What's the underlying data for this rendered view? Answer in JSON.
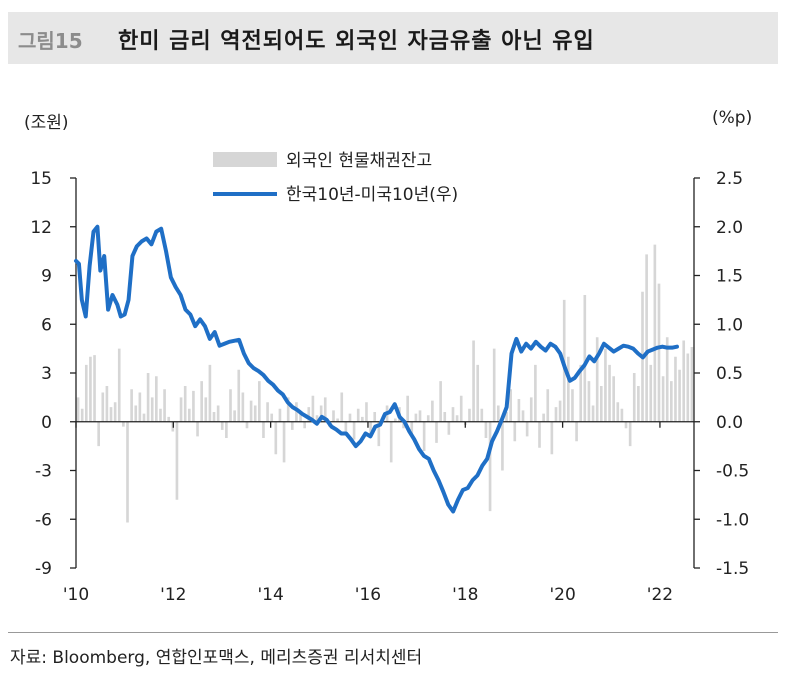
{
  "figure": {
    "label": "그림15",
    "title": "한미 금리 역전되어도 외국인 자금유출 아닌 유입"
  },
  "source": "자료: Bloomberg, 연합인포맥스, 메리츠증권 리서치센터",
  "chart_data": {
    "type": "bar+line",
    "left_unit": "(조원)",
    "right_unit": "(%p)",
    "y_left": {
      "min": -9,
      "max": 15,
      "ticks": [
        "15",
        "12",
        "9",
        "6",
        "3",
        "0",
        "-3",
        "-6",
        "-9"
      ]
    },
    "y_right": {
      "min": -1.5,
      "max": 2.5,
      "ticks": [
        "2.5",
        "2.0",
        "1.5",
        "1.0",
        "0.5",
        "0.0",
        "-0.5",
        "-1.0",
        "-1.5"
      ]
    },
    "x_labels": [
      "'10",
      "'12",
      "'14",
      "'16",
      "'18",
      "'20",
      "'22"
    ],
    "x_start_year": 2010,
    "x_end_year": 2022.7,
    "grid": false,
    "legend_position": "top-center",
    "colors": {
      "bars": "#d6d6d6",
      "line": "#1f6fc6"
    },
    "series": [
      {
        "name": "외국인 현물채권잔고",
        "type": "bar",
        "values": [
          1.5,
          0.8,
          3.5,
          4.0,
          4.1,
          -1.5,
          1.8,
          2.2,
          0.9,
          1.2,
          4.5,
          -0.3,
          -6.2,
          2.0,
          1.0,
          1.8,
          0.5,
          3.0,
          1.5,
          2.8,
          0.8,
          2.0,
          0.3,
          -0.6,
          -4.8,
          1.5,
          2.2,
          0.8,
          1.9,
          -0.9,
          2.5,
          1.5,
          3.5,
          0.6,
          1.0,
          -0.5,
          -1.0,
          2.0,
          0.7,
          3.2,
          1.8,
          -0.4,
          1.3,
          1.0,
          2.5,
          -1.0,
          1.2,
          0.5,
          -2.0,
          0.8,
          -2.5,
          1.5,
          -0.5,
          1.2,
          0.6,
          -0.4,
          0.9,
          1.6,
          0.4,
          1.0,
          1.5,
          -0.3,
          0.7,
          0.2,
          1.8,
          -0.6,
          0.5,
          -1.1,
          0.8,
          0.3,
          1.2,
          -0.8,
          0.6,
          -1.5,
          0.3,
          1.0,
          -2.5,
          0.2,
          0.9,
          -0.4,
          1.6,
          -0.9,
          0.5,
          0.7,
          -1.8,
          0.4,
          1.3,
          -1.3,
          2.5,
          0.6,
          -0.8,
          0.9,
          0.4,
          1.6,
          -0.2,
          0.8,
          5.0,
          3.5,
          0.8,
          -1.0,
          -5.5,
          4.5,
          1.0,
          -3.0,
          0.6,
          2.0,
          -1.2,
          1.4,
          0.7,
          -0.9,
          1.5,
          3.5,
          -1.6,
          0.5,
          2.0,
          -2.0,
          0.9,
          1.3,
          7.5,
          4.0,
          2.0,
          -1.2,
          3.5,
          7.8,
          2.5,
          1.0,
          5.2,
          2.2,
          4.5,
          3.5,
          2.8,
          1.2,
          0.8,
          -0.4,
          -1.5,
          3.0,
          2.2,
          8.0,
          10.3,
          3.5,
          10.9,
          8.5,
          2.8,
          5.2,
          2.5,
          4.0,
          3.2,
          5.0,
          4.2,
          4.6
        ]
      },
      {
        "name": "한국10년-미국10년(우)",
        "type": "line",
        "x": [
          2010.0,
          2010.06,
          2010.12,
          2010.2,
          2010.28,
          2010.36,
          2010.44,
          2010.5,
          2010.58,
          2010.66,
          2010.75,
          2010.85,
          2010.92,
          2011.0,
          2011.08,
          2011.16,
          2011.25,
          2011.35,
          2011.45,
          2011.55,
          2011.65,
          2011.75,
          2011.85,
          2011.95,
          2012.05,
          2012.15,
          2012.25,
          2012.35,
          2012.45,
          2012.55,
          2012.65,
          2012.75,
          2012.85,
          2012.95,
          2013.05,
          2013.15,
          2013.25,
          2013.35,
          2013.45,
          2013.55,
          2013.65,
          2013.75,
          2013.85,
          2013.95,
          2014.05,
          2014.15,
          2014.25,
          2014.35,
          2014.45,
          2014.55,
          2014.65,
          2014.75,
          2014.85,
          2014.95,
          2015.05,
          2015.15,
          2015.25,
          2015.35,
          2015.45,
          2015.55,
          2015.65,
          2015.75,
          2015.85,
          2015.95,
          2016.05,
          2016.15,
          2016.25,
          2016.35,
          2016.45,
          2016.55,
          2016.65,
          2016.75,
          2016.85,
          2016.95,
          2017.05,
          2017.15,
          2017.25,
          2017.35,
          2017.45,
          2017.55,
          2017.65,
          2017.75,
          2017.85,
          2017.95,
          2018.05,
          2018.15,
          2018.25,
          2018.35,
          2018.45,
          2018.55,
          2018.65,
          2018.75,
          2018.85,
          2018.95,
          2019.05,
          2019.15,
          2019.25,
          2019.35,
          2019.45,
          2019.55,
          2019.65,
          2019.75,
          2019.85,
          2019.95,
          2020.05,
          2020.15,
          2020.25,
          2020.35,
          2020.45,
          2020.55,
          2020.65,
          2020.75,
          2020.85,
          2020.95,
          2021.05,
          2021.15,
          2021.25,
          2021.35,
          2021.45,
          2021.55,
          2021.65,
          2021.75,
          2021.85,
          2021.95,
          2022.05,
          2022.15,
          2022.25,
          2022.35
        ],
        "values": [
          1.65,
          1.62,
          1.25,
          1.08,
          1.6,
          1.95,
          2.0,
          1.55,
          1.7,
          1.15,
          1.3,
          1.2,
          1.08,
          1.1,
          1.25,
          1.7,
          1.8,
          1.85,
          1.88,
          1.82,
          1.95,
          1.98,
          1.75,
          1.48,
          1.38,
          1.3,
          1.15,
          1.1,
          0.98,
          1.05,
          0.98,
          0.85,
          0.92,
          0.78,
          0.8,
          0.82,
          0.83,
          0.84,
          0.7,
          0.6,
          0.55,
          0.52,
          0.48,
          0.42,
          0.38,
          0.32,
          0.28,
          0.2,
          0.15,
          0.12,
          0.08,
          0.05,
          0.02,
          -0.02,
          0.05,
          0.02,
          -0.05,
          -0.08,
          -0.12,
          -0.12,
          -0.18,
          -0.25,
          -0.2,
          -0.12,
          -0.15,
          -0.05,
          -0.03,
          0.08,
          0.1,
          0.18,
          0.05,
          0.0,
          -0.1,
          -0.18,
          -0.28,
          -0.35,
          -0.38,
          -0.5,
          -0.6,
          -0.72,
          -0.85,
          -0.92,
          -0.8,
          -0.7,
          -0.68,
          -0.6,
          -0.55,
          -0.45,
          -0.38,
          -0.2,
          -0.1,
          0.02,
          0.15,
          0.7,
          0.85,
          0.72,
          0.8,
          0.75,
          0.82,
          0.77,
          0.73,
          0.8,
          0.77,
          0.7,
          0.55,
          0.42,
          0.45,
          0.52,
          0.58,
          0.67,
          0.62,
          0.7,
          0.8,
          0.76,
          0.72,
          0.75,
          0.78,
          0.77,
          0.75,
          0.7,
          0.66,
          0.72,
          0.74,
          0.76,
          0.77,
          0.76,
          0.76,
          0.77
        ]
      }
    ]
  }
}
